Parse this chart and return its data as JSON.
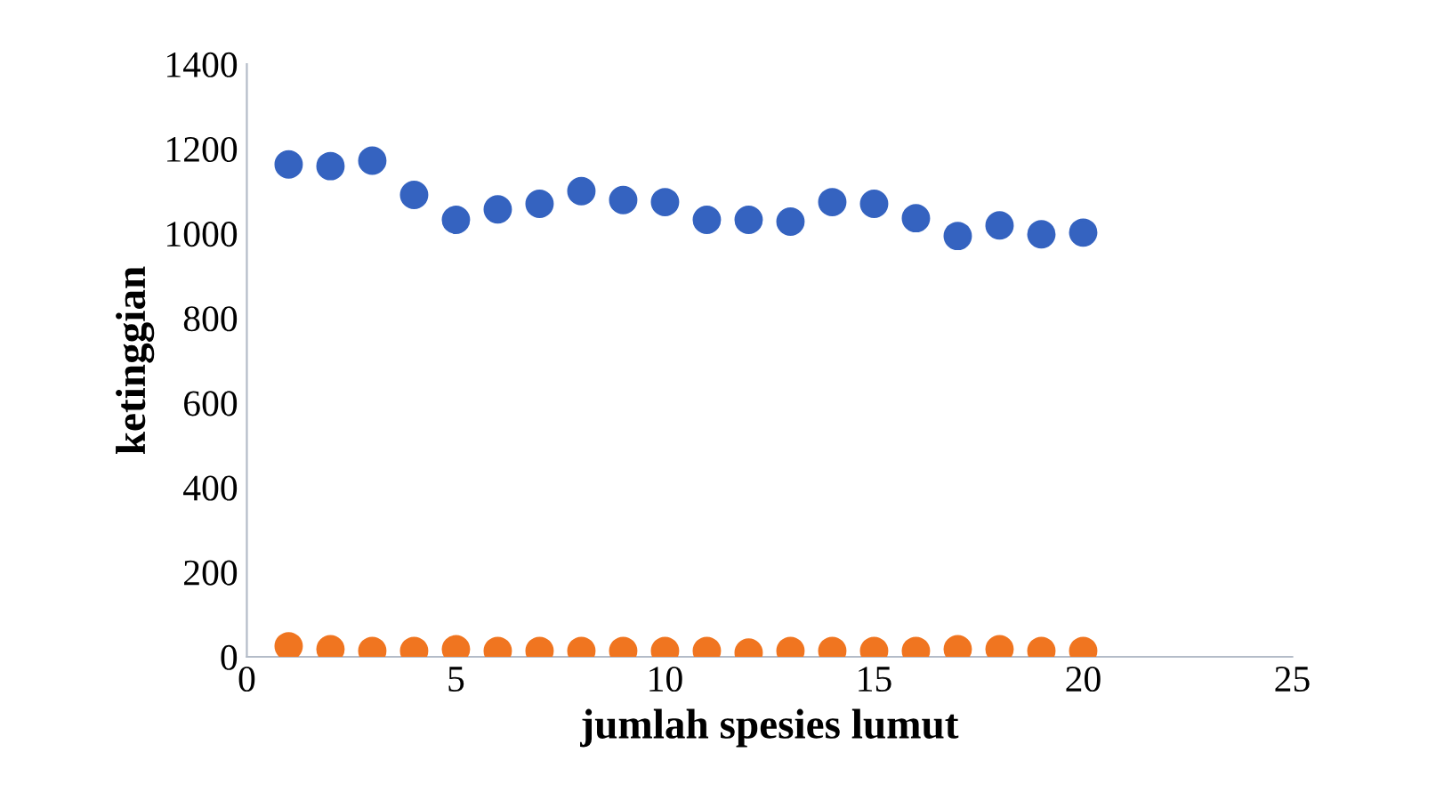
{
  "chart_data": {
    "type": "scatter",
    "xlabel": "jumlah spesies lumut",
    "ylabel": "ketinggian",
    "x": [
      1,
      2,
      3,
      4,
      5,
      6,
      7,
      8,
      9,
      10,
      11,
      12,
      13,
      14,
      15,
      16,
      17,
      18,
      19,
      20
    ],
    "series": [
      {
        "color": "#3563c0",
        "values": [
          1163,
          1159,
          1172,
          1091,
          1032,
          1057,
          1070,
          1100,
          1079,
          1074,
          1032,
          1032,
          1028,
          1074,
          1070,
          1036,
          994,
          1019,
          998,
          1002
        ]
      },
      {
        "color": "#f07520",
        "values": [
          25,
          18,
          14,
          14,
          18,
          14,
          14,
          14,
          14,
          14,
          14,
          10,
          14,
          14,
          14,
          14,
          18,
          18,
          14,
          14
        ]
      }
    ],
    "xlim": [
      0,
      25
    ],
    "xticks": [
      0,
      5,
      10,
      15,
      20,
      25
    ],
    "ylim": [
      0,
      1400
    ],
    "yticks": [
      0,
      200,
      400,
      600,
      800,
      1000,
      1200,
      1400
    ],
    "marker": "circle",
    "grid": false,
    "legend": false
  }
}
